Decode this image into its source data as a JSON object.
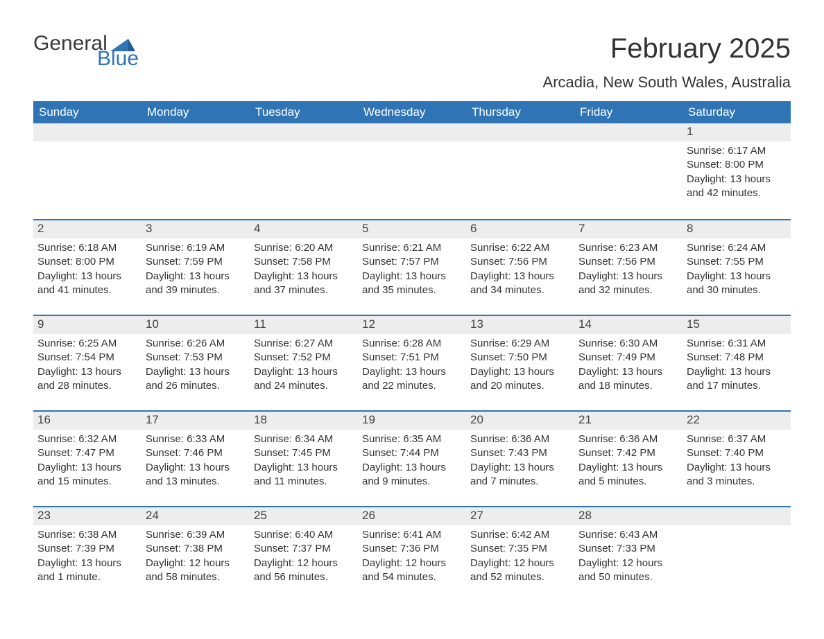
{
  "logo": {
    "word1": "General",
    "word2": "Blue",
    "word1_color": "#3a3a3a",
    "word2_color": "#2f75b5",
    "triangle_color": "#2f75b5"
  },
  "title": "February 2025",
  "subtitle": "Arcadia, New South Wales, Australia",
  "colors": {
    "header_bg": "#2f75b5",
    "header_text": "#ffffff",
    "daynum_bg": "#ededed",
    "body_text": "#333333",
    "rule": "#2f75b5",
    "page_bg": "#ffffff"
  },
  "fonts": {
    "title_size": 40,
    "subtitle_size": 22,
    "dayhead_size": 17,
    "daynum_size": 17,
    "body_size": 15
  },
  "day_headers": [
    "Sunday",
    "Monday",
    "Tuesday",
    "Wednesday",
    "Thursday",
    "Friday",
    "Saturday"
  ],
  "weeks": [
    [
      null,
      null,
      null,
      null,
      null,
      null,
      {
        "n": "1",
        "sunrise": "Sunrise: 6:17 AM",
        "sunset": "Sunset: 8:00 PM",
        "dl1": "Daylight: 13 hours",
        "dl2": "and 42 minutes."
      }
    ],
    [
      {
        "n": "2",
        "sunrise": "Sunrise: 6:18 AM",
        "sunset": "Sunset: 8:00 PM",
        "dl1": "Daylight: 13 hours",
        "dl2": "and 41 minutes."
      },
      {
        "n": "3",
        "sunrise": "Sunrise: 6:19 AM",
        "sunset": "Sunset: 7:59 PM",
        "dl1": "Daylight: 13 hours",
        "dl2": "and 39 minutes."
      },
      {
        "n": "4",
        "sunrise": "Sunrise: 6:20 AM",
        "sunset": "Sunset: 7:58 PM",
        "dl1": "Daylight: 13 hours",
        "dl2": "and 37 minutes."
      },
      {
        "n": "5",
        "sunrise": "Sunrise: 6:21 AM",
        "sunset": "Sunset: 7:57 PM",
        "dl1": "Daylight: 13 hours",
        "dl2": "and 35 minutes."
      },
      {
        "n": "6",
        "sunrise": "Sunrise: 6:22 AM",
        "sunset": "Sunset: 7:56 PM",
        "dl1": "Daylight: 13 hours",
        "dl2": "and 34 minutes."
      },
      {
        "n": "7",
        "sunrise": "Sunrise: 6:23 AM",
        "sunset": "Sunset: 7:56 PM",
        "dl1": "Daylight: 13 hours",
        "dl2": "and 32 minutes."
      },
      {
        "n": "8",
        "sunrise": "Sunrise: 6:24 AM",
        "sunset": "Sunset: 7:55 PM",
        "dl1": "Daylight: 13 hours",
        "dl2": "and 30 minutes."
      }
    ],
    [
      {
        "n": "9",
        "sunrise": "Sunrise: 6:25 AM",
        "sunset": "Sunset: 7:54 PM",
        "dl1": "Daylight: 13 hours",
        "dl2": "and 28 minutes."
      },
      {
        "n": "10",
        "sunrise": "Sunrise: 6:26 AM",
        "sunset": "Sunset: 7:53 PM",
        "dl1": "Daylight: 13 hours",
        "dl2": "and 26 minutes."
      },
      {
        "n": "11",
        "sunrise": "Sunrise: 6:27 AM",
        "sunset": "Sunset: 7:52 PM",
        "dl1": "Daylight: 13 hours",
        "dl2": "and 24 minutes."
      },
      {
        "n": "12",
        "sunrise": "Sunrise: 6:28 AM",
        "sunset": "Sunset: 7:51 PM",
        "dl1": "Daylight: 13 hours",
        "dl2": "and 22 minutes."
      },
      {
        "n": "13",
        "sunrise": "Sunrise: 6:29 AM",
        "sunset": "Sunset: 7:50 PM",
        "dl1": "Daylight: 13 hours",
        "dl2": "and 20 minutes."
      },
      {
        "n": "14",
        "sunrise": "Sunrise: 6:30 AM",
        "sunset": "Sunset: 7:49 PM",
        "dl1": "Daylight: 13 hours",
        "dl2": "and 18 minutes."
      },
      {
        "n": "15",
        "sunrise": "Sunrise: 6:31 AM",
        "sunset": "Sunset: 7:48 PM",
        "dl1": "Daylight: 13 hours",
        "dl2": "and 17 minutes."
      }
    ],
    [
      {
        "n": "16",
        "sunrise": "Sunrise: 6:32 AM",
        "sunset": "Sunset: 7:47 PM",
        "dl1": "Daylight: 13 hours",
        "dl2": "and 15 minutes."
      },
      {
        "n": "17",
        "sunrise": "Sunrise: 6:33 AM",
        "sunset": "Sunset: 7:46 PM",
        "dl1": "Daylight: 13 hours",
        "dl2": "and 13 minutes."
      },
      {
        "n": "18",
        "sunrise": "Sunrise: 6:34 AM",
        "sunset": "Sunset: 7:45 PM",
        "dl1": "Daylight: 13 hours",
        "dl2": "and 11 minutes."
      },
      {
        "n": "19",
        "sunrise": "Sunrise: 6:35 AM",
        "sunset": "Sunset: 7:44 PM",
        "dl1": "Daylight: 13 hours",
        "dl2": "and 9 minutes."
      },
      {
        "n": "20",
        "sunrise": "Sunrise: 6:36 AM",
        "sunset": "Sunset: 7:43 PM",
        "dl1": "Daylight: 13 hours",
        "dl2": "and 7 minutes."
      },
      {
        "n": "21",
        "sunrise": "Sunrise: 6:36 AM",
        "sunset": "Sunset: 7:42 PM",
        "dl1": "Daylight: 13 hours",
        "dl2": "and 5 minutes."
      },
      {
        "n": "22",
        "sunrise": "Sunrise: 6:37 AM",
        "sunset": "Sunset: 7:40 PM",
        "dl1": "Daylight: 13 hours",
        "dl2": "and 3 minutes."
      }
    ],
    [
      {
        "n": "23",
        "sunrise": "Sunrise: 6:38 AM",
        "sunset": "Sunset: 7:39 PM",
        "dl1": "Daylight: 13 hours",
        "dl2": "and 1 minute."
      },
      {
        "n": "24",
        "sunrise": "Sunrise: 6:39 AM",
        "sunset": "Sunset: 7:38 PM",
        "dl1": "Daylight: 12 hours",
        "dl2": "and 58 minutes."
      },
      {
        "n": "25",
        "sunrise": "Sunrise: 6:40 AM",
        "sunset": "Sunset: 7:37 PM",
        "dl1": "Daylight: 12 hours",
        "dl2": "and 56 minutes."
      },
      {
        "n": "26",
        "sunrise": "Sunrise: 6:41 AM",
        "sunset": "Sunset: 7:36 PM",
        "dl1": "Daylight: 12 hours",
        "dl2": "and 54 minutes."
      },
      {
        "n": "27",
        "sunrise": "Sunrise: 6:42 AM",
        "sunset": "Sunset: 7:35 PM",
        "dl1": "Daylight: 12 hours",
        "dl2": "and 52 minutes."
      },
      {
        "n": "28",
        "sunrise": "Sunrise: 6:43 AM",
        "sunset": "Sunset: 7:33 PM",
        "dl1": "Daylight: 12 hours",
        "dl2": "and 50 minutes."
      },
      null
    ]
  ]
}
